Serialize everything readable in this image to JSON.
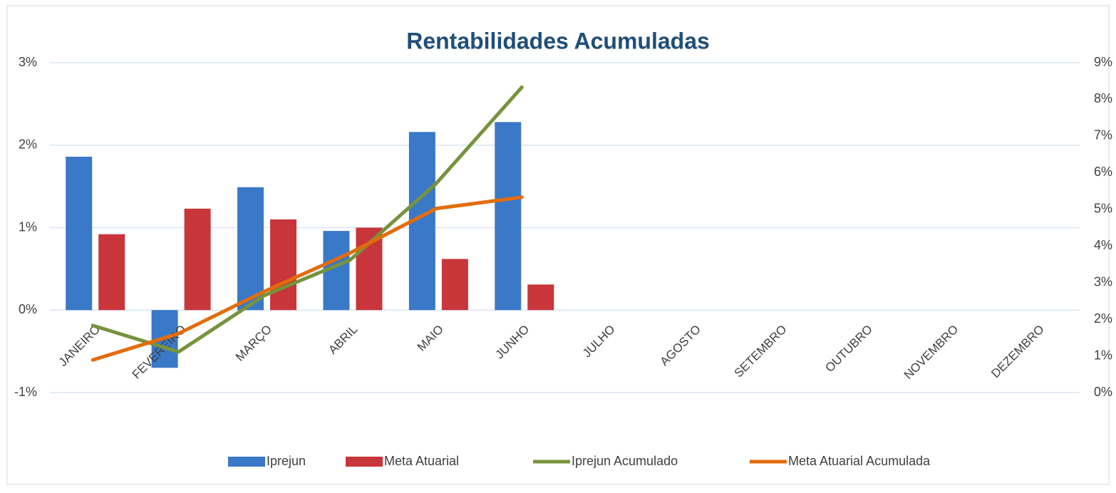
{
  "chart_data": {
    "type": "bar_line",
    "title": "Rentabilidades Acumuladas",
    "categories": [
      "JANEIRO",
      "FEVEREIRO",
      "MARÇO",
      "ABRIL",
      "MAIO",
      "JUNHO",
      "JULHO",
      "AGOSTO",
      "SETEMBRO",
      "OUTUBRO",
      "NOVEMBRO",
      "DEZEMBRO"
    ],
    "series": [
      {
        "name": "Iprejun",
        "type": "bar",
        "color": "#3a78c8",
        "values": [
          1.86,
          -0.7,
          1.49,
          0.96,
          2.16,
          2.28,
          null,
          null,
          null,
          null,
          null,
          null
        ]
      },
      {
        "name": "Meta Atuarial",
        "type": "bar",
        "color": "#c8363b",
        "values": [
          0.92,
          1.23,
          1.1,
          1.0,
          0.62,
          0.31,
          null,
          null,
          null,
          null,
          null,
          null
        ]
      },
      {
        "name": "Iprejun Acumulado",
        "type": "line",
        "axis": "y2",
        "color": "#77933c",
        "values": [
          1.83,
          1.11,
          2.65,
          3.62,
          5.7,
          8.33,
          null,
          null,
          null,
          null,
          null,
          null
        ]
      },
      {
        "name": "Meta Atuarial Acumulada",
        "type": "line",
        "axis": "y2",
        "color": "#e36c0a",
        "values": [
          0.89,
          1.61,
          2.76,
          3.81,
          5.02,
          5.33,
          null,
          null,
          null,
          null,
          null,
          null
        ]
      }
    ],
    "ylim": [
      -1,
      3
    ],
    "yticks": [
      {
        "value": -1,
        "label": "-1%"
      },
      {
        "value": 0,
        "label": "0%"
      },
      {
        "value": 1,
        "label": "1%"
      },
      {
        "value": 2,
        "label": "2%"
      },
      {
        "value": 3,
        "label": "3%"
      }
    ],
    "y2lim": [
      0,
      9
    ],
    "y2ticks": [
      {
        "value": 0,
        "label": "0%"
      },
      {
        "value": 1,
        "label": "1%"
      },
      {
        "value": 2,
        "label": "2%"
      },
      {
        "value": 3,
        "label": "3%"
      },
      {
        "value": 4,
        "label": "4%"
      },
      {
        "value": 5,
        "label": "5%"
      },
      {
        "value": 6,
        "label": "6%"
      },
      {
        "value": 7,
        "label": "7%"
      },
      {
        "value": 8,
        "label": "8%"
      },
      {
        "value": 9,
        "label": "9%"
      }
    ],
    "grid": true,
    "legend": "bottom"
  }
}
